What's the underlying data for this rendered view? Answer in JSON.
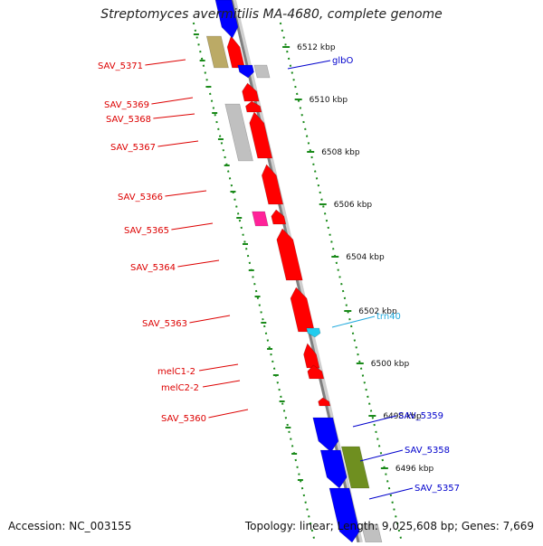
{
  "title": "Streptomyces avermitilis MA-4680, complete genome",
  "accession_text": "Accession: NC_003155",
  "info_text": "Topology: linear; Length: 9,025,608 bp; Genes: 7,669",
  "colors": {
    "axis": "#808080",
    "ruler": "#1a8a1a",
    "plus_strand_gene": "#ff0000",
    "minus_strand_gene": "#0000ff",
    "trna": "#22ccee",
    "pseudo_gene": "#c0c0c0",
    "olive_gene": "#bbaa66",
    "olive_dark_gene": "#6f8f20",
    "magenta_gene": "#ff2299",
    "left_label": "#dd0000",
    "right_label": "#0000cc",
    "trna_label": "#22aadd"
  },
  "scale_labels": [
    "6512 kbp",
    "6510 kbp",
    "6508 kbp",
    "6506 kbp",
    "6504 kbp",
    "6502 kbp",
    "6500 kbp",
    "6498 kbp",
    "6496 kbp"
  ],
  "left_labels": [
    "SAV_5371",
    "SAV_5369",
    "SAV_5368",
    "SAV_5367",
    "SAV_5366",
    "SAV_5365",
    "SAV_5364",
    "SAV_5363",
    "melC1-2",
    "melC2-2",
    "SAV_5360"
  ],
  "right_labels": [
    "glbO",
    "trn40",
    "SAV_5359",
    "SAV_5358",
    "SAV_5357"
  ]
}
